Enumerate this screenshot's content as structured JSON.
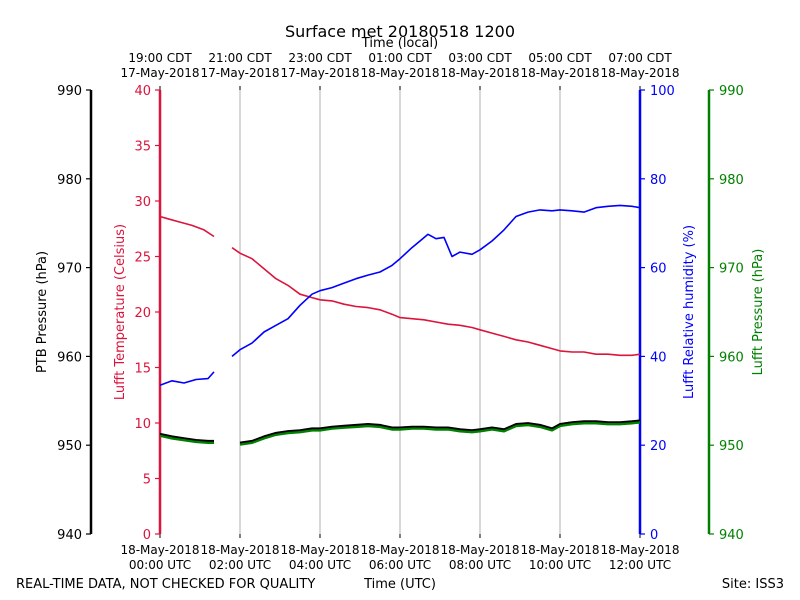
{
  "chart_data": {
    "type": "line",
    "title": "Surface met 20180518 1200",
    "top_axis_title": "Time (local)",
    "xlabel": "Time (UTC)",
    "footer_left": "REAL-TIME DATA, NOT CHECKED FOR QUALITY",
    "footer_right": "Site: ISS3",
    "x_unit": "hours after 2018-05-18 00:00 UTC",
    "xlim": [
      0,
      12
    ],
    "utc_ticks": [
      {
        "hour": 0,
        "line1": "18-May-2018",
        "line2": "00:00 UTC"
      },
      {
        "hour": 2,
        "line1": "18-May-2018",
        "line2": "02:00 UTC"
      },
      {
        "hour": 4,
        "line1": "18-May-2018",
        "line2": "04:00 UTC"
      },
      {
        "hour": 6,
        "line1": "18-May-2018",
        "line2": "06:00 UTC"
      },
      {
        "hour": 8,
        "line1": "18-May-2018",
        "line2": "08:00 UTC"
      },
      {
        "hour": 10,
        "line1": "18-May-2018",
        "line2": "10:00 UTC"
      },
      {
        "hour": 12,
        "line1": "18-May-2018",
        "line2": "12:00 UTC"
      }
    ],
    "local_ticks": [
      {
        "hour": 0,
        "line1": "19:00 CDT",
        "line2": "17-May-2018"
      },
      {
        "hour": 2,
        "line1": "21:00 CDT",
        "line2": "17-May-2018"
      },
      {
        "hour": 4,
        "line1": "23:00 CDT",
        "line2": "17-May-2018"
      },
      {
        "hour": 6,
        "line1": "01:00 CDT",
        "line2": "18-May-2018"
      },
      {
        "hour": 8,
        "line1": "03:00 CDT",
        "line2": "18-May-2018"
      },
      {
        "hour": 10,
        "line1": "05:00 CDT",
        "line2": "18-May-2018"
      },
      {
        "hour": 12,
        "line1": "07:00 CDT",
        "line2": "18-May-2018"
      }
    ],
    "axes": {
      "ptb": {
        "label": "PTB Pressure (hPa)",
        "ylim": [
          940,
          990
        ],
        "ticks": [
          940,
          950,
          960,
          970,
          980,
          990
        ],
        "color": "#000000"
      },
      "temp": {
        "label": "Lufft Temperature (Celsius)",
        "ylim": [
          0,
          40
        ],
        "ticks": [
          0,
          5,
          10,
          15,
          20,
          25,
          30,
          35,
          40
        ],
        "color": "#dc143c"
      },
      "rh": {
        "label": "Lufft Relative humidity (%)",
        "ylim": [
          0,
          100
        ],
        "ticks": [
          0,
          20,
          40,
          60,
          80,
          100
        ],
        "color": "#0000ff"
      },
      "lp": {
        "label": "Lufft Pressure (hPa)",
        "ylim": [
          940,
          990
        ],
        "ticks": [
          940,
          950,
          960,
          970,
          980,
          990
        ],
        "color": "#008000"
      }
    },
    "series": [
      {
        "name": "Lufft Temperature",
        "axis": "temp",
        "color": "#dc143c",
        "width": 1.6,
        "x": [
          0,
          0.2,
          0.5,
          0.8,
          1.1,
          1.35,
          1.6,
          1.8,
          2.0,
          2.3,
          2.6,
          2.9,
          3.2,
          3.5,
          3.8,
          4.0,
          4.3,
          4.6,
          4.9,
          5.2,
          5.5,
          5.8,
          6.0,
          6.3,
          6.6,
          6.9,
          7.2,
          7.5,
          7.8,
          8.0,
          8.3,
          8.6,
          8.9,
          9.2,
          9.5,
          9.8,
          10.0,
          10.3,
          10.6,
          10.9,
          11.2,
          11.5,
          11.8,
          12.0
        ],
        "values": [
          28.6,
          28.4,
          28.1,
          27.8,
          27.4,
          26.8,
          null,
          25.8,
          25.3,
          24.8,
          23.9,
          23.0,
          22.4,
          21.6,
          21.3,
          21.1,
          21.0,
          20.7,
          20.5,
          20.4,
          20.2,
          19.8,
          19.5,
          19.4,
          19.3,
          19.1,
          18.9,
          18.8,
          18.6,
          18.4,
          18.1,
          17.8,
          17.5,
          17.3,
          17.0,
          16.7,
          16.5,
          16.4,
          16.4,
          16.2,
          16.2,
          16.1,
          16.1,
          16.2
        ]
      },
      {
        "name": "Lufft Relative humidity",
        "axis": "rh",
        "color": "#0000ff",
        "width": 1.6,
        "x": [
          0,
          0.3,
          0.6,
          0.9,
          1.2,
          1.35,
          1.6,
          1.8,
          2.0,
          2.3,
          2.6,
          2.9,
          3.2,
          3.5,
          3.8,
          4.0,
          4.3,
          4.6,
          4.9,
          5.2,
          5.5,
          5.8,
          6.0,
          6.3,
          6.5,
          6.7,
          6.9,
          7.1,
          7.3,
          7.5,
          7.8,
          8.0,
          8.3,
          8.6,
          8.9,
          9.2,
          9.5,
          9.8,
          10.0,
          10.3,
          10.6,
          10.9,
          11.2,
          11.5,
          11.8,
          12.0
        ],
        "values": [
          33.5,
          34.5,
          34.0,
          34.8,
          35.0,
          36.5,
          null,
          40.0,
          41.5,
          43.0,
          45.5,
          47.0,
          48.5,
          51.5,
          54.0,
          54.8,
          55.5,
          56.5,
          57.5,
          58.3,
          59.0,
          60.5,
          62.0,
          64.5,
          66.0,
          67.5,
          66.5,
          66.8,
          62.5,
          63.5,
          63.0,
          64.0,
          66.0,
          68.5,
          71.5,
          72.5,
          73.0,
          72.8,
          73.0,
          72.8,
          72.5,
          73.5,
          73.8,
          74.0,
          73.8,
          73.5
        ]
      },
      {
        "name": "Lufft Pressure",
        "axis": "lp",
        "color": "#008000",
        "width": 3.0,
        "x": [
          0,
          0.3,
          0.6,
          0.9,
          1.2,
          1.35,
          1.7,
          2.0,
          2.3,
          2.6,
          2.9,
          3.2,
          3.5,
          3.8,
          4.0,
          4.3,
          4.6,
          4.9,
          5.2,
          5.5,
          5.8,
          6.0,
          6.3,
          6.6,
          6.9,
          7.2,
          7.5,
          7.8,
          8.0,
          8.3,
          8.6,
          8.9,
          9.2,
          9.5,
          9.8,
          10.0,
          10.3,
          10.6,
          10.9,
          11.2,
          11.5,
          11.8,
          12.0
        ],
        "values": [
          951.1,
          950.8,
          950.6,
          950.4,
          950.3,
          950.3,
          null,
          950.1,
          950.3,
          950.8,
          951.2,
          951.4,
          951.5,
          951.7,
          951.7,
          951.9,
          952.0,
          952.1,
          952.2,
          952.1,
          951.8,
          951.8,
          951.9,
          951.9,
          951.8,
          951.8,
          951.6,
          951.5,
          951.6,
          951.8,
          951.6,
          952.2,
          952.3,
          952.1,
          951.7,
          952.2,
          952.4,
          952.5,
          952.5,
          952.4,
          952.4,
          952.5,
          952.6
        ]
      },
      {
        "name": "PTB Pressure",
        "axis": "ptb",
        "color": "#000000",
        "width": 1.8,
        "x": [
          0,
          0.3,
          0.6,
          0.9,
          1.2,
          1.35,
          1.7,
          2.0,
          2.3,
          2.6,
          2.9,
          3.2,
          3.5,
          3.8,
          4.0,
          4.3,
          4.6,
          4.9,
          5.2,
          5.5,
          5.8,
          6.0,
          6.3,
          6.6,
          6.9,
          7.2,
          7.5,
          7.8,
          8.0,
          8.3,
          8.6,
          8.9,
          9.2,
          9.5,
          9.8,
          10.0,
          10.3,
          10.6,
          10.9,
          11.2,
          11.5,
          11.8,
          12.0
        ],
        "values": [
          951.3,
          951.0,
          950.8,
          950.6,
          950.5,
          950.5,
          null,
          950.3,
          950.5,
          951.0,
          951.4,
          951.6,
          951.7,
          951.9,
          951.9,
          952.1,
          952.2,
          952.3,
          952.4,
          952.3,
          952.0,
          952.0,
          952.1,
          952.1,
          952.0,
          952.0,
          951.8,
          951.7,
          951.8,
          952.0,
          951.8,
          952.4,
          952.5,
          952.3,
          951.9,
          952.4,
          952.6,
          952.7,
          952.7,
          952.6,
          952.6,
          952.7,
          952.8
        ]
      }
    ]
  }
}
